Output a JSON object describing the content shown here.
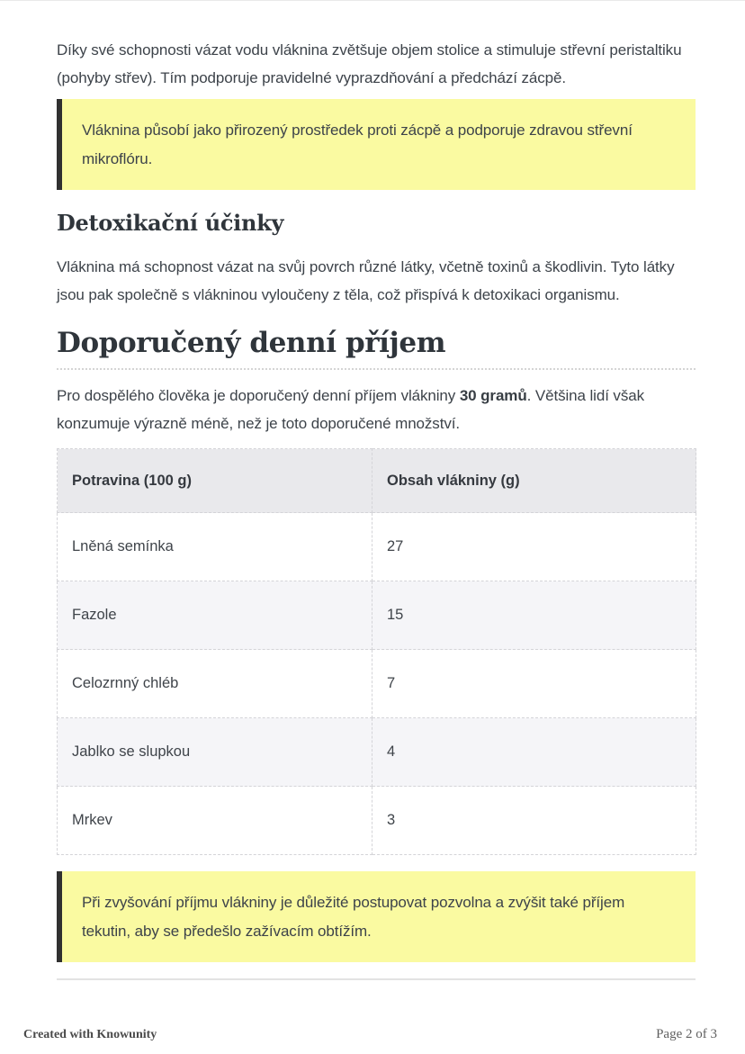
{
  "document": {
    "intro_paragraph": "Díky své schopnosti vázat vodu vláknina zvětšuje objem stolice a stimuluje střevní peristaltiku (pohyby střev). Tím podporuje pravidelné vyprazdňování a předchází zácpě.",
    "callout_constipation": "Vláknina působí jako přirozený prostředek proti zácpě a podporuje zdravou střevní mikroflóru.",
    "detox_heading": "Detoxikační účinky",
    "detox_paragraph": "Vláknina má schopnost vázat na svůj povrch různé látky, včetně toxinů a škodlivin. Tyto látky jsou pak společně s vlákninou vyloučeny z těla, což přispívá k detoxikaci organismu.",
    "intake_heading": "Doporučený denní příjem",
    "intake_paragraph": {
      "before": "Pro dospělého člověka je doporučený denní příjem vlákniny ",
      "bold": "30 gramů",
      "after": ". Většina lidí však konzumuje výrazně méně, než je toto doporučené množství."
    },
    "fluid_callout": "Při zvyšování příjmu vlákniny je důležité postupovat pozvolna a zvýšit také příjem tekutin, aby se předešlo zažívacím obtížím."
  },
  "table": {
    "columns": [
      "Potravina (100 g)",
      "Obsah vlákniny (g)"
    ],
    "rows": [
      {
        "food": "Lněná semínka",
        "fiber": "27"
      },
      {
        "food": "Fazole",
        "fiber": "15"
      },
      {
        "food": "Celozrnný chléb",
        "fiber": "7"
      },
      {
        "food": "Jablko se slupkou",
        "fiber": "4"
      },
      {
        "food": "Mrkev",
        "fiber": "3"
      }
    ]
  },
  "footer": {
    "left": "Created with Knowunity",
    "right": "Page 2 of 3"
  },
  "colors": {
    "callout_bg": "#FAFAA1",
    "callout_border": "#303030",
    "table_header_bg": "#E9E9EC",
    "table_alt_row_bg": "#F5F5F8",
    "dashed_border": "#D4D4D8",
    "heading_text": "#2F353B",
    "body_text": "#3D434A"
  }
}
